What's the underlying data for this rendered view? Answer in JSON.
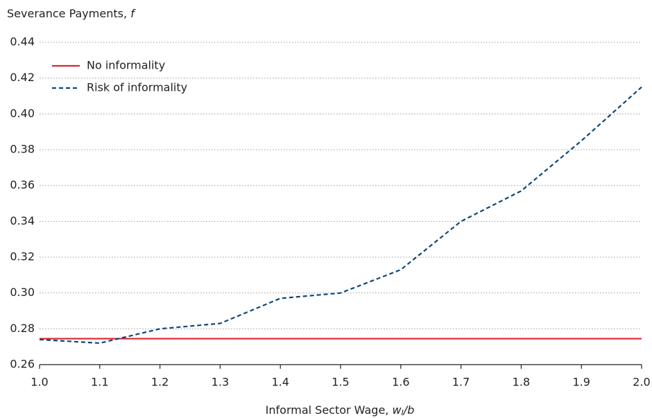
{
  "chart_data": {
    "type": "line",
    "ylabel_parts": [
      "Severance Payments, ",
      "f"
    ],
    "xlabel_parts": [
      "Informal Sector Wage, ",
      "w",
      "I",
      "/b"
    ],
    "x": [
      1.0,
      1.1,
      1.2,
      1.3,
      1.4,
      1.5,
      1.6,
      1.7,
      1.8,
      1.9,
      2.0
    ],
    "series": [
      {
        "name": "No informality",
        "color": "#d7262f",
        "dashed": false,
        "values": [
          0.2745,
          0.2745,
          0.2745,
          0.2745,
          0.2745,
          0.2745,
          0.2745,
          0.2745,
          0.2745,
          0.2745,
          0.2745
        ]
      },
      {
        "name": "Risk of informality",
        "color": "#0f4675",
        "dashed": true,
        "values": [
          0.274,
          0.272,
          0.28,
          0.283,
          0.297,
          0.3,
          0.313,
          0.34,
          0.357,
          0.385,
          0.415
        ]
      }
    ],
    "xlim": [
      1.0,
      2.0
    ],
    "xticks": [
      {
        "value": 1,
        "label": "1.0"
      },
      1.1,
      1.2,
      1.3,
      1.4,
      1.5,
      1.6,
      1.7,
      1.8,
      1.9,
      {
        "value": 2,
        "label": "2.0"
      }
    ],
    "ylim": [
      0.26,
      0.44
    ],
    "yticks": [
      0.26,
      0.28,
      {
        "value": 0.3,
        "label": "0.30"
      },
      0.32,
      0.34,
      0.36,
      0.38,
      {
        "value": 0.4,
        "label": "0.40"
      },
      0.42,
      0.44
    ],
    "grid": true,
    "legend": "upper left"
  }
}
